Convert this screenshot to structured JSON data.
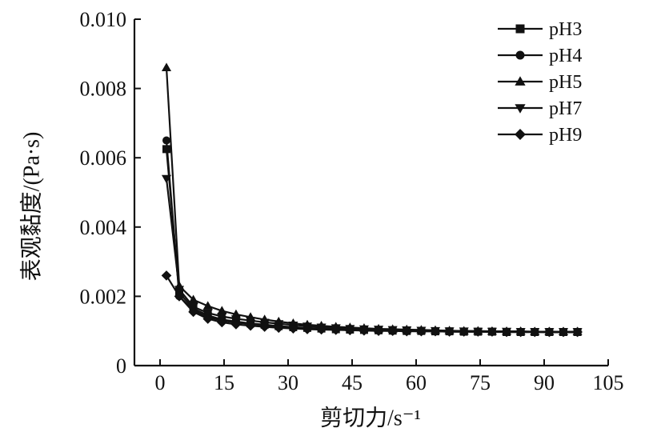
{
  "chart_data": {
    "type": "line",
    "title": "",
    "xlabel": "剪切力/s⁻¹",
    "ylabel": "表观黏度/(Pa·s)",
    "xlim": [
      -6,
      105
    ],
    "ylim": [
      0,
      0.01
    ],
    "x_ticks": [
      0,
      15,
      30,
      45,
      60,
      75,
      90,
      105
    ],
    "x_tick_labels": [
      "0",
      "15",
      "30",
      "45",
      "60",
      "75",
      "90",
      "105"
    ],
    "y_ticks": [
      0,
      0.002,
      0.004,
      0.006,
      0.008,
      0.01
    ],
    "y_tick_labels": [
      "0",
      "0.002",
      "0.004",
      "0.006",
      "0.008",
      "0.010"
    ],
    "grid": false,
    "legend_position": "top-right",
    "x": [
      1.5,
      4.5,
      7.8,
      11.2,
      14.5,
      17.8,
      21.2,
      24.5,
      27.8,
      31.2,
      34.5,
      37.8,
      41.2,
      44.5,
      47.8,
      51.2,
      54.5,
      57.8,
      61.2,
      64.5,
      67.8,
      71.2,
      74.5,
      77.8,
      81.2,
      84.5,
      87.8,
      91.2,
      94.5,
      97.8
    ],
    "series": [
      {
        "name": "pH3",
        "marker": "square",
        "values": [
          0.00625,
          0.0021,
          0.00165,
          0.00145,
          0.00133,
          0.00127,
          0.00122,
          0.00118,
          0.00114,
          0.00111,
          0.00109,
          0.00107,
          0.00105,
          0.00104,
          0.00103,
          0.00102,
          0.00101,
          0.001,
          0.001,
          0.00099,
          0.00099,
          0.00098,
          0.00098,
          0.00098,
          0.00097,
          0.00097,
          0.00097,
          0.00097,
          0.00097,
          0.00097
        ]
      },
      {
        "name": "pH4",
        "marker": "circle",
        "values": [
          0.0065,
          0.002,
          0.0016,
          0.0014,
          0.0013,
          0.00124,
          0.0012,
          0.00116,
          0.00113,
          0.0011,
          0.00108,
          0.00106,
          0.00104,
          0.00103,
          0.00102,
          0.00101,
          0.001,
          0.001,
          0.00099,
          0.00099,
          0.00098,
          0.00098,
          0.00098,
          0.00097,
          0.00097,
          0.00097,
          0.00097,
          0.00096,
          0.00096,
          0.00096
        ]
      },
      {
        "name": "pH5",
        "marker": "triangle-up",
        "values": [
          0.0086,
          0.0023,
          0.0019,
          0.00172,
          0.00158,
          0.00148,
          0.0014,
          0.00133,
          0.00127,
          0.00122,
          0.00118,
          0.00115,
          0.00112,
          0.0011,
          0.00108,
          0.00106,
          0.00105,
          0.00104,
          0.00103,
          0.00102,
          0.00101,
          0.001,
          0.001,
          0.00099,
          0.00099,
          0.00099,
          0.00098,
          0.00098,
          0.00098,
          0.00098
        ]
      },
      {
        "name": "pH7",
        "marker": "triangle-down",
        "values": [
          0.0054,
          0.0022,
          0.0017,
          0.00152,
          0.00142,
          0.00135,
          0.0013,
          0.00125,
          0.00121,
          0.00117,
          0.00114,
          0.00111,
          0.00109,
          0.00107,
          0.00106,
          0.00105,
          0.00104,
          0.00103,
          0.00102,
          0.00101,
          0.001,
          0.001,
          0.00099,
          0.00099,
          0.00099,
          0.00098,
          0.00098,
          0.00098,
          0.00098,
          0.00098
        ]
      },
      {
        "name": "pH9",
        "marker": "diamond",
        "values": [
          0.0026,
          0.002,
          0.00155,
          0.00135,
          0.00125,
          0.00119,
          0.00115,
          0.00112,
          0.00109,
          0.00107,
          0.00105,
          0.00104,
          0.00103,
          0.00102,
          0.00101,
          0.001,
          0.001,
          0.00099,
          0.00099,
          0.00099,
          0.00098,
          0.00098,
          0.00098,
          0.00098,
          0.00097,
          0.00097,
          0.00097,
          0.00097,
          0.00097,
          0.00097
        ]
      }
    ]
  }
}
